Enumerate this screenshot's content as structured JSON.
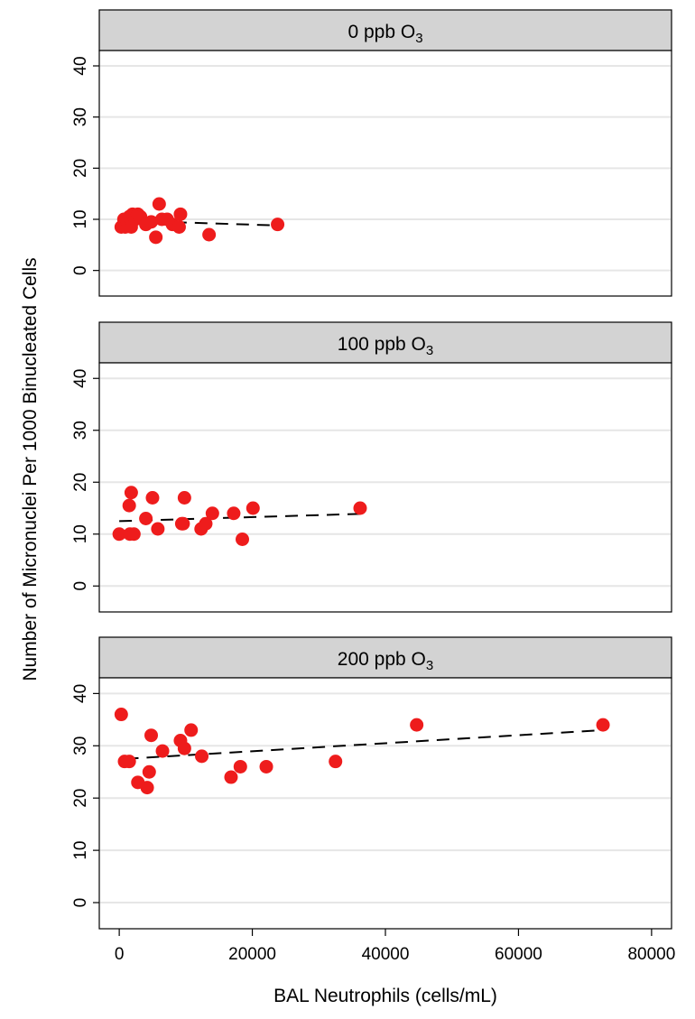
{
  "chart_data": {
    "type": "scatter",
    "layout": "three vertically stacked facet panels sharing one x axis",
    "xlabel": "BAL Neutrophils (cells/mL)",
    "ylabel": "Number of Micronuclei Per 1000 Binucleated Cells",
    "x_ticks": [
      0,
      20000,
      40000,
      60000,
      80000
    ],
    "y_ticks": [
      0,
      10,
      20,
      30,
      40
    ],
    "xlim": [
      -3000,
      83000
    ],
    "ylim": [
      -5,
      43
    ],
    "grid": "horizontal gridlines",
    "point_color": "#ee1c1c",
    "fit_line_style": "black dashed linear fit",
    "panels": [
      {
        "label": "0 ppb O",
        "label_sub": "3",
        "points": [
          [
            300,
            8.5
          ],
          [
            700,
            10
          ],
          [
            900,
            8.5
          ],
          [
            1200,
            9.5
          ],
          [
            1500,
            10.5
          ],
          [
            1800,
            8.5
          ],
          [
            2000,
            11
          ],
          [
            2400,
            10
          ],
          [
            2800,
            11
          ],
          [
            3200,
            10.5
          ],
          [
            4000,
            9
          ],
          [
            4800,
            9.5
          ],
          [
            5500,
            6.5
          ],
          [
            6000,
            13
          ],
          [
            6400,
            10
          ],
          [
            7200,
            10
          ],
          [
            8000,
            9
          ],
          [
            9000,
            8.5
          ],
          [
            9200,
            11
          ],
          [
            13500,
            7
          ],
          [
            23800,
            9
          ]
        ],
        "fit": [
          [
            2000,
            9.7
          ],
          [
            23800,
            8.8
          ]
        ]
      },
      {
        "label": "100 ppb O",
        "label_sub": "3",
        "points": [
          [
            0,
            10
          ],
          [
            1500,
            15.5
          ],
          [
            1600,
            10
          ],
          [
            1800,
            18
          ],
          [
            2200,
            10
          ],
          [
            4000,
            13
          ],
          [
            5000,
            17
          ],
          [
            5800,
            11
          ],
          [
            9400,
            12
          ],
          [
            9600,
            12
          ],
          [
            9800,
            17
          ],
          [
            12300,
            11
          ],
          [
            13000,
            12
          ],
          [
            14000,
            14
          ],
          [
            17200,
            14
          ],
          [
            18500,
            9
          ],
          [
            20100,
            15
          ],
          [
            36200,
            15
          ]
        ],
        "fit": [
          [
            0,
            12.5
          ],
          [
            36200,
            13.9
          ]
        ]
      },
      {
        "label": "200 ppb O",
        "label_sub": "3",
        "points": [
          [
            300,
            36
          ],
          [
            800,
            27
          ],
          [
            1500,
            27
          ],
          [
            2800,
            23
          ],
          [
            4200,
            22
          ],
          [
            4500,
            25
          ],
          [
            4800,
            32
          ],
          [
            6500,
            29
          ],
          [
            9200,
            31
          ],
          [
            9800,
            29.5
          ],
          [
            10800,
            33
          ],
          [
            12400,
            28
          ],
          [
            16800,
            24
          ],
          [
            18200,
            26
          ],
          [
            22100,
            26
          ],
          [
            32500,
            27
          ],
          [
            44700,
            34
          ],
          [
            72700,
            34
          ]
        ],
        "fit": [
          [
            1000,
            27.5
          ],
          [
            72700,
            33
          ]
        ]
      }
    ]
  }
}
